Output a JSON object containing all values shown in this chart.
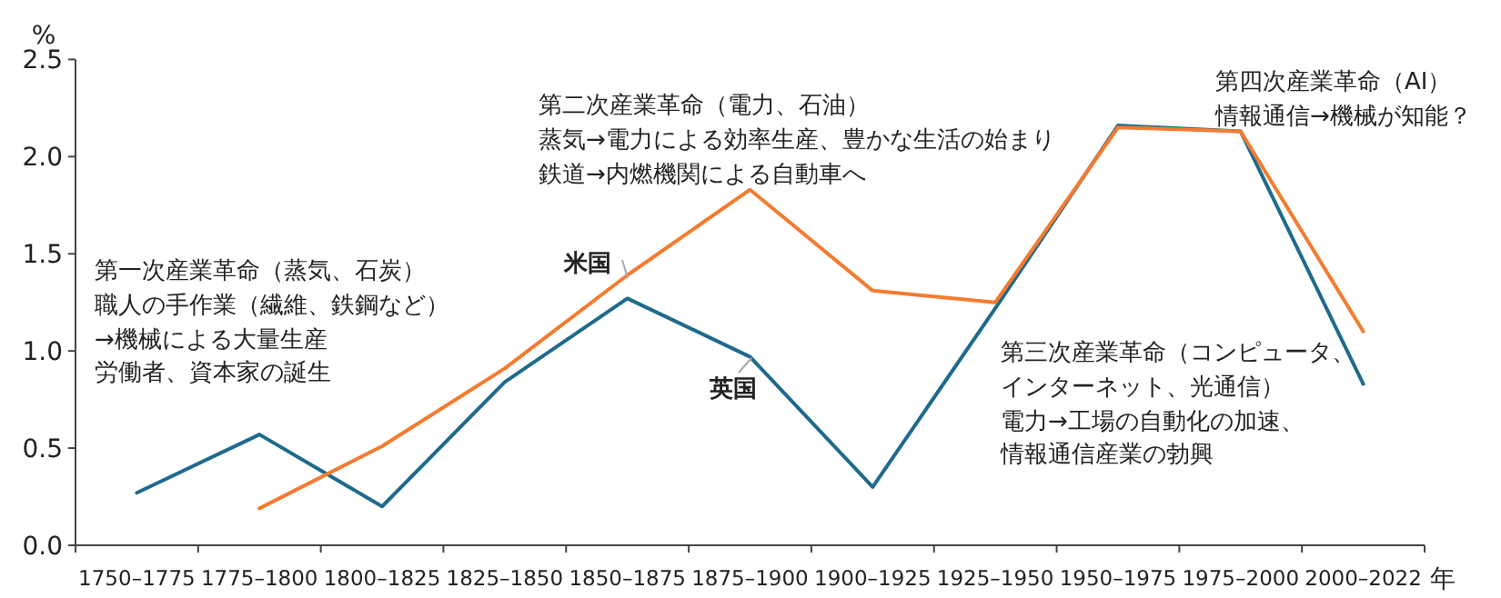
{
  "chart_data": {
    "type": "line",
    "categories": [
      "1750–1775",
      "1775–1800",
      "1800–1825",
      "1825–1850",
      "1850–1875",
      "1875–1900",
      "1900–1925",
      "1925–1950",
      "1950–1975",
      "1975–2000",
      "2000–2022"
    ],
    "series": [
      {
        "name": "英国",
        "color": "#1f6a8c",
        "values": [
          0.27,
          0.57,
          0.2,
          0.84,
          1.27,
          0.97,
          0.3,
          1.22,
          2.16,
          2.13,
          0.83
        ]
      },
      {
        "name": "米国",
        "color": "#f47b30",
        "values": [
          null,
          0.19,
          0.51,
          0.91,
          1.39,
          1.83,
          1.31,
          1.25,
          2.15,
          2.13,
          1.1
        ]
      }
    ],
    "ylim": [
      0,
      2.5
    ],
    "yticks": [
      {
        "value": 0,
        "label": "0.0"
      },
      {
        "value": 0.5,
        "label": "0.5"
      },
      {
        "value": 1,
        "label": "1.0"
      },
      {
        "value": 1.5,
        "label": "1.5"
      },
      {
        "value": 2,
        "label": "2.0"
      },
      {
        "value": 2.5,
        "label": "2.5"
      }
    ],
    "ylabel": "%",
    "xlabel": "年",
    "legend": false,
    "grid": false,
    "marker": "none",
    "line_style": "solid",
    "annotations": [
      "第一次産業革命（蒸気、石炭）",
      "職人の手作業（繊維、鉄鋼など）",
      "→機械による大量生産",
      "労働者、資本家の誕生",
      "第二次産業革命（電力、石油）",
      "蒸気→電力による効率生産、豊かな生活の始まり",
      "鉄道→内燃機関による自動車へ",
      "第三次産業革命（コンピュータ、",
      "インターネット、光通信）",
      "電力→工場の自動化の加速、",
      "情報通信産業の勃興",
      "第四次産業革命（AI）",
      "情報通信→機械が知能？"
    ]
  }
}
